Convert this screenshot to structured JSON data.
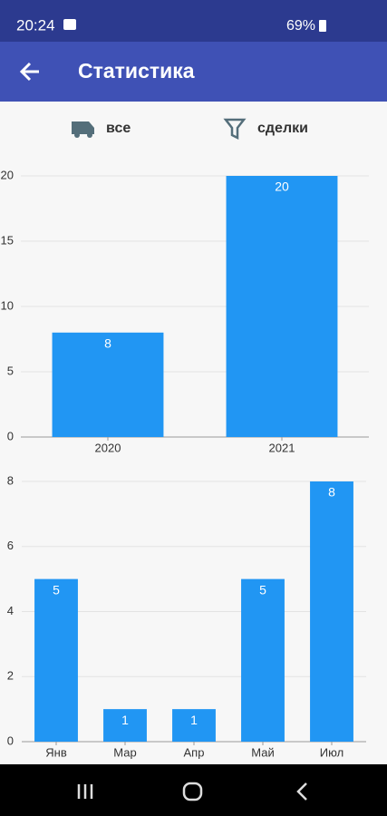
{
  "status_bar": {
    "time": "20:24",
    "battery": "69%"
  },
  "app_bar": {
    "title": "Статистика"
  },
  "filters": {
    "vehicle": "все",
    "kind": "сделки"
  },
  "chart_data": [
    {
      "type": "bar",
      "categories": [
        "2020",
        "2021"
      ],
      "values": [
        8,
        20
      ],
      "color": "#2196f3",
      "ylim": [
        0,
        20
      ],
      "yticks": [
        0,
        5,
        10,
        15,
        20
      ],
      "grid": true
    },
    {
      "type": "bar",
      "categories": [
        "Янв",
        "Мар",
        "Апр",
        "Май",
        "Июл"
      ],
      "values": [
        5,
        1,
        1,
        5,
        8
      ],
      "color": "#2196f3",
      "ylim": [
        0,
        8
      ],
      "yticks": [
        0,
        2,
        4,
        6,
        8
      ],
      "grid": true
    }
  ]
}
